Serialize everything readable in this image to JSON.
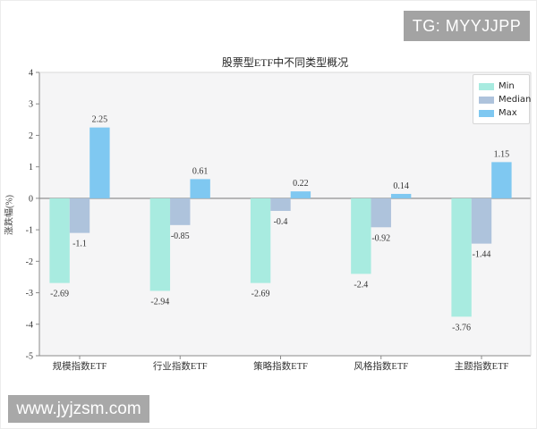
{
  "badge": {
    "text": "TG: MYYJJPP"
  },
  "watermark": {
    "text": "www.jyjzsm.com"
  },
  "chart_data": {
    "type": "bar",
    "title": "股票型ETF中不同类型概况",
    "xlabel": "",
    "ylabel": "涨跌幅(%)",
    "ylim": [
      -5,
      4
    ],
    "yticks": [
      4,
      3,
      2,
      1,
      0,
      -1,
      -2,
      -3,
      -4,
      -5
    ],
    "grid": false,
    "legend_position": "upper right",
    "categories": [
      "规模指数ETF",
      "行业指数ETF",
      "策略指数ETF",
      "风格指数ETF",
      "主题指数ETF"
    ],
    "series": [
      {
        "name": "Min",
        "color": "#a8ebe0",
        "values": [
          -2.69,
          -2.94,
          -2.69,
          -2.4,
          -3.76
        ]
      },
      {
        "name": "Median",
        "color": "#aec3dc",
        "values": [
          -1.1,
          -0.85,
          -0.4,
          -0.92,
          -1.44
        ]
      },
      {
        "name": "Max",
        "color": "#7fc8f1",
        "values": [
          2.25,
          0.61,
          0.22,
          0.14,
          1.15
        ]
      }
    ],
    "colors": {
      "plot_background": "#f5f5f6",
      "zero_line": "#9a9a9a",
      "spine_dark": "#8a8a8a",
      "spine_light": "#d9d9d9",
      "tick_text": "#3a3a3a"
    }
  }
}
